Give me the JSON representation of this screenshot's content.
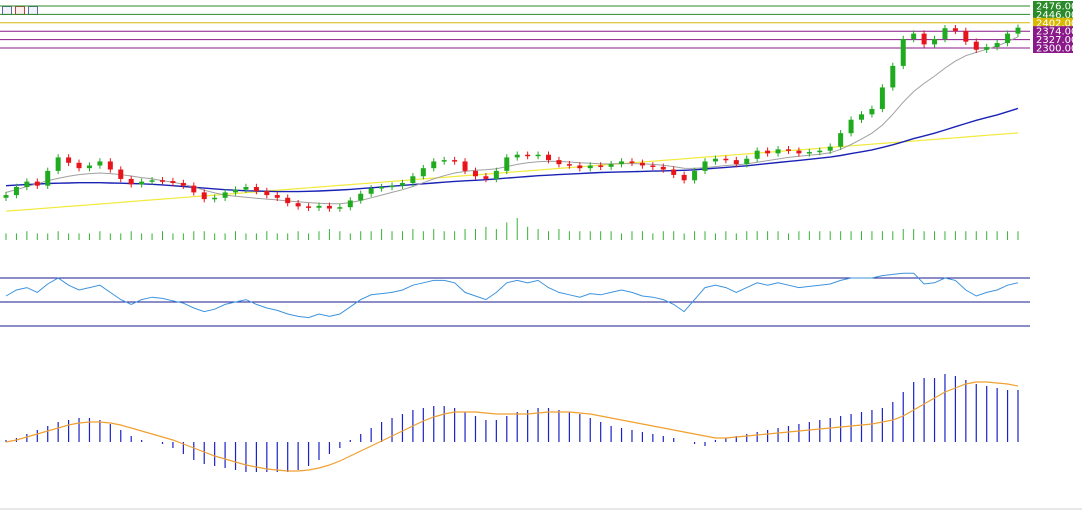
{
  "toolbar": {
    "icons": [
      "chart-settings-icon",
      "indicator-list-icon",
      "window-layout-icon"
    ]
  },
  "colors": {
    "bull": "#1faa1f",
    "bear": "#e8141b",
    "ma_fast": "#a0a0a0",
    "ma_mid": "#1a22b5",
    "ma_slow": "#f2ea3c",
    "volume": "#34b334",
    "rsi": "#3d93de",
    "rsi_levels": "#1a1a8c",
    "macd_hist": "#1a22c8",
    "macd_signal": "#f0a030",
    "level_green": "#2a8a2a",
    "level_yellow": "#d9b800",
    "level_purple": "#8a1a8a"
  },
  "chart_data": {
    "type": "candlestick",
    "price_levels": [
      {
        "label": "2476.00",
        "value": 2476,
        "color": "#2a8a2a"
      },
      {
        "label": "2446.00",
        "value": 2446,
        "color": "#2a8a2a"
      },
      {
        "label": "2402.00",
        "value": 2402,
        "color": "#d9b800"
      },
      {
        "label": "2374.00",
        "value": 2374,
        "color": "#8a1a8a"
      },
      {
        "label": "2327.00",
        "value": 2327,
        "color": "#8a1a8a"
      },
      {
        "label": "2300.00",
        "value": 2300,
        "color": "#8a1a8a"
      }
    ],
    "candles_close": [
      1780,
      1810,
      1830,
      1815,
      1870,
      1920,
      1900,
      1880,
      1890,
      1905,
      1875,
      1840,
      1820,
      1830,
      1835,
      1832,
      1825,
      1815,
      1790,
      1765,
      1770,
      1790,
      1800,
      1810,
      1795,
      1780,
      1770,
      1750,
      1738,
      1733,
      1740,
      1730,
      1735,
      1760,
      1785,
      1805,
      1810,
      1815,
      1825,
      1850,
      1880,
      1905,
      1910,
      1905,
      1870,
      1850,
      1840,
      1870,
      1920,
      1930,
      1925,
      1930,
      1910,
      1895,
      1890,
      1880,
      1890,
      1885,
      1895,
      1905,
      1900,
      1890,
      1885,
      1875,
      1855,
      1835,
      1870,
      1905,
      1915,
      1910,
      1895,
      1915,
      1945,
      1935,
      1950,
      1945,
      1935,
      1940,
      1945,
      1960,
      2010,
      2060,
      2080,
      2100,
      2180,
      2260,
      2360,
      2380,
      2340,
      2360,
      2400,
      2390,
      2350,
      2320,
      2330,
      2345,
      2380,
      2402
    ],
    "ma_fast": [
      1790,
      1800,
      1812,
      1822,
      1834,
      1842,
      1850,
      1856,
      1860,
      1862,
      1860,
      1856,
      1851,
      1845,
      1840,
      1834,
      1828,
      1820,
      1810,
      1798,
      1788,
      1780,
      1776,
      1772,
      1768,
      1765,
      1762,
      1758,
      1755,
      1752,
      1750,
      1748,
      1748,
      1752,
      1760,
      1770,
      1780,
      1790,
      1800,
      1812,
      1826,
      1840,
      1852,
      1862,
      1868,
      1872,
      1874,
      1878,
      1886,
      1894,
      1900,
      1904,
      1906,
      1905,
      1903,
      1900,
      1898,
      1896,
      1896,
      1897,
      1897,
      1896,
      1894,
      1891,
      1886,
      1880,
      1879,
      1882,
      1886,
      1890,
      1892,
      1896,
      1902,
      1908,
      1914,
      1920,
      1924,
      1928,
      1932,
      1937,
      1950,
      1968,
      1988,
      2010,
      2040,
      2080,
      2125,
      2165,
      2195,
      2222,
      2252,
      2278,
      2298,
      2310,
      2322,
      2334,
      2350,
      2368
    ],
    "ma_mid": [
      1815,
      1817,
      1819,
      1821,
      1823,
      1824,
      1825,
      1826,
      1826,
      1826,
      1825,
      1824,
      1823,
      1822,
      1820,
      1818,
      1815,
      1812,
      1809,
      1806,
      1803,
      1800,
      1798,
      1796,
      1795,
      1794,
      1793,
      1793,
      1793,
      1794,
      1795,
      1797,
      1799,
      1801,
      1804,
      1807,
      1810,
      1813,
      1816,
      1819,
      1822,
      1825,
      1828,
      1831,
      1833,
      1835,
      1837,
      1840,
      1843,
      1846,
      1849,
      1852,
      1854,
      1856,
      1858,
      1860,
      1862,
      1864,
      1865,
      1866,
      1867,
      1868,
      1869,
      1870,
      1871,
      1872,
      1874,
      1877,
      1880,
      1883,
      1886,
      1889,
      1893,
      1897,
      1901,
      1905,
      1909,
      1913,
      1917,
      1921,
      1927,
      1934,
      1941,
      1948,
      1957,
      1967,
      1978,
      1990,
      2000,
      2010,
      2022,
      2034,
      2046,
      2058,
      2068,
      2078,
      2090,
      2102
    ],
    "ma_slow": [
      1720,
      1723,
      1726,
      1729,
      1732,
      1735,
      1738,
      1741,
      1744,
      1747,
      1750,
      1753,
      1756,
      1759,
      1762,
      1765,
      1768,
      1771,
      1774,
      1777,
      1780,
      1783,
      1786,
      1789,
      1792,
      1795,
      1798,
      1801,
      1804,
      1807,
      1810,
      1813,
      1816,
      1819,
      1822,
      1825,
      1828,
      1831,
      1834,
      1837,
      1840,
      1843,
      1846,
      1849,
      1852,
      1855,
      1858,
      1861,
      1864,
      1867,
      1870,
      1873,
      1876,
      1879,
      1882,
      1885,
      1888,
      1891,
      1894,
      1897,
      1900,
      1903,
      1906,
      1909,
      1912,
      1915,
      1918,
      1921,
      1924,
      1927,
      1930,
      1933,
      1936,
      1939,
      1942,
      1945,
      1948,
      1951,
      1954,
      1957,
      1960,
      1963,
      1966,
      1969,
      1972,
      1975,
      1978,
      1981,
      1984,
      1987,
      1990,
      1993,
      1996,
      1999,
      2002,
      2005,
      2008,
      2011
    ],
    "volume": [
      3,
      3,
      4,
      3,
      3,
      4,
      3,
      3,
      3,
      4,
      3,
      3,
      4,
      3,
      3,
      4,
      3,
      3,
      4,
      4,
      3,
      3,
      4,
      3,
      3,
      4,
      3,
      3,
      4,
      3,
      4,
      5,
      4,
      3,
      4,
      4,
      5,
      4,
      4,
      5,
      4,
      5,
      4,
      4,
      5,
      5,
      6,
      5,
      8,
      10,
      6,
      5,
      4,
      5,
      4,
      4,
      4,
      4,
      4,
      3,
      4,
      4,
      3,
      4,
      4,
      3,
      4,
      4,
      3,
      4,
      3,
      4,
      4,
      4,
      4,
      3,
      4,
      4,
      4,
      4,
      4,
      4,
      4,
      4,
      4,
      4,
      5,
      5,
      4,
      4,
      4,
      4,
      4,
      4,
      4,
      4,
      4,
      4
    ],
    "rsi": [
      55,
      60,
      62,
      58,
      65,
      70,
      64,
      60,
      62,
      64,
      58,
      52,
      48,
      52,
      54,
      53,
      51,
      49,
      45,
      42,
      44,
      48,
      50,
      52,
      48,
      45,
      43,
      40,
      38,
      37,
      40,
      38,
      40,
      46,
      52,
      56,
      57,
      58,
      60,
      64,
      66,
      68,
      68,
      66,
      58,
      55,
      52,
      58,
      66,
      68,
      66,
      68,
      62,
      58,
      56,
      54,
      57,
      56,
      58,
      60,
      58,
      55,
      54,
      52,
      48,
      42,
      52,
      62,
      64,
      62,
      58,
      62,
      66,
      64,
      66,
      64,
      62,
      63,
      64,
      65,
      68,
      70,
      70,
      70,
      72,
      73,
      74,
      74,
      65,
      66,
      70,
      68,
      60,
      55,
      58,
      60,
      64,
      66
    ],
    "rsi_levels": [
      70,
      50,
      30
    ],
    "macd_hist": [
      2,
      4,
      8,
      12,
      16,
      20,
      22,
      24,
      24,
      22,
      18,
      12,
      6,
      2,
      0,
      -2,
      -6,
      -12,
      -18,
      -22,
      -24,
      -26,
      -28,
      -30,
      -30,
      -30,
      -30,
      -30,
      -28,
      -24,
      -18,
      -12,
      -6,
      2,
      8,
      14,
      20,
      24,
      28,
      32,
      34,
      36,
      36,
      34,
      30,
      26,
      22,
      22,
      26,
      30,
      32,
      34,
      34,
      32,
      30,
      28,
      24,
      20,
      16,
      14,
      12,
      10,
      8,
      6,
      4,
      0,
      -2,
      -4,
      2,
      4,
      6,
      8,
      10,
      12,
      14,
      16,
      18,
      20,
      22,
      24,
      26,
      28,
      30,
      32,
      34,
      40,
      50,
      60,
      64,
      64,
      68,
      66,
      62,
      58,
      56,
      54,
      52,
      52
    ],
    "macd_signal": [
      0,
      2,
      5,
      8,
      11,
      14,
      17,
      19,
      20,
      20,
      19,
      17,
      14,
      11,
      8,
      5,
      2,
      -2,
      -6,
      -10,
      -14,
      -17,
      -20,
      -23,
      -25,
      -27,
      -28,
      -29,
      -29,
      -28,
      -26,
      -23,
      -19,
      -14,
      -9,
      -4,
      1,
      6,
      11,
      16,
      21,
      25,
      28,
      30,
      30,
      30,
      29,
      28,
      28,
      28,
      28,
      29,
      30,
      30,
      30,
      29,
      28,
      26,
      24,
      22,
      20,
      18,
      16,
      14,
      12,
      10,
      8,
      6,
      4,
      4,
      5,
      6,
      7,
      8,
      9,
      10,
      11,
      12,
      13,
      14,
      15,
      16,
      17,
      18,
      20,
      22,
      26,
      32,
      38,
      44,
      50,
      54,
      58,
      60,
      60,
      59,
      58,
      56
    ]
  }
}
